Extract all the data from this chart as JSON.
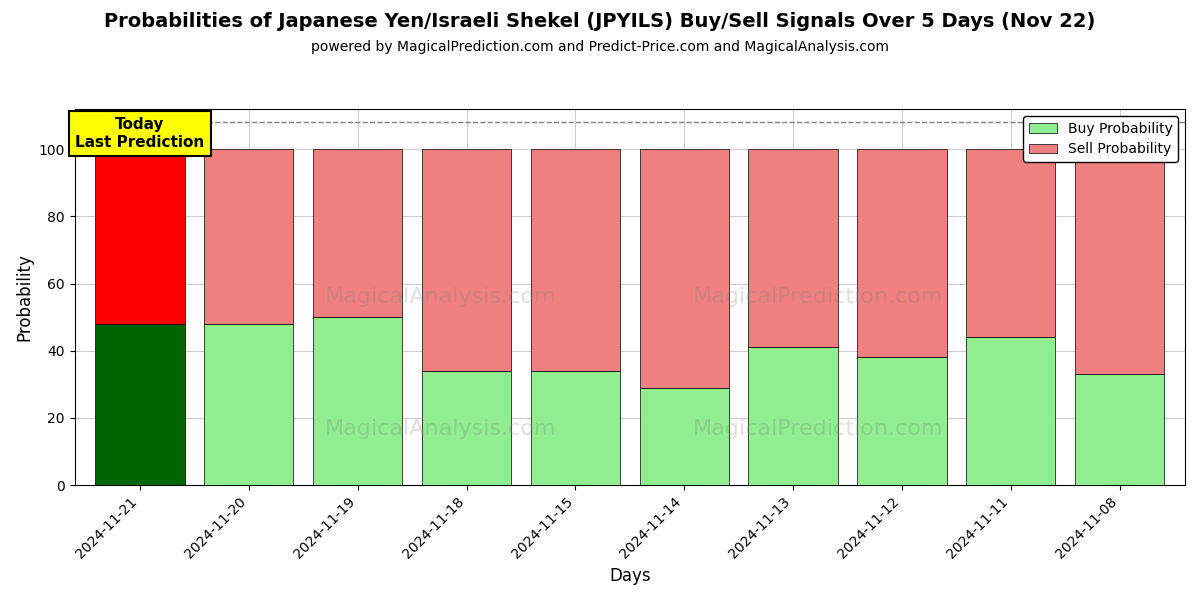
{
  "title": "Probabilities of Japanese Yen/Israeli Shekel (JPYILS) Buy/Sell Signals Over 5 Days (Nov 22)",
  "subtitle": "powered by MagicalPrediction.com and Predict-Price.com and MagicalAnalysis.com",
  "xlabel": "Days",
  "ylabel": "Probability",
  "dates": [
    "2024-11-21",
    "2024-11-20",
    "2024-11-19",
    "2024-11-18",
    "2024-11-15",
    "2024-11-14",
    "2024-11-13",
    "2024-11-12",
    "2024-11-11",
    "2024-11-08"
  ],
  "buy_values": [
    48,
    48,
    50,
    34,
    34,
    29,
    41,
    38,
    44,
    33
  ],
  "sell_values": [
    52,
    52,
    50,
    66,
    66,
    71,
    59,
    62,
    56,
    67
  ],
  "today_buy_color": "#006400",
  "today_sell_color": "#ff0000",
  "buy_color": "#90EE90",
  "sell_color": "#F08080",
  "today_label": "Today\nLast Prediction",
  "legend_buy": "Buy Probability",
  "legend_sell": "Sell Probability",
  "ylim": [
    0,
    112
  ],
  "yticks": [
    0,
    20,
    40,
    60,
    80,
    100
  ],
  "watermark1": "MagicalAnalysis.com",
  "watermark2": "MagicalPrediction.com",
  "background_color": "#ffffff",
  "grid_color": "#cccccc"
}
